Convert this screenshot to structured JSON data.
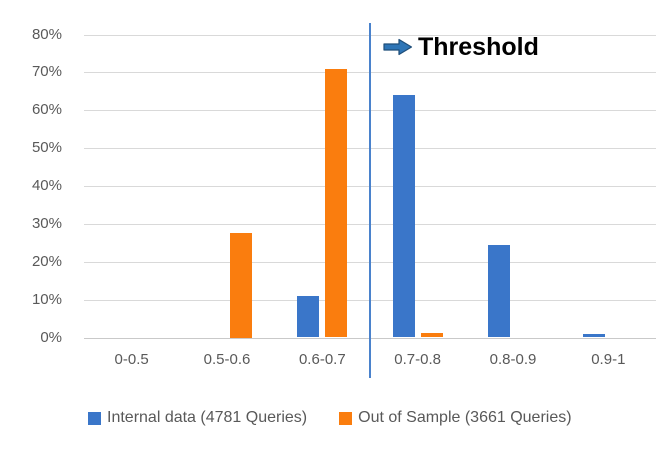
{
  "chart_data": {
    "type": "bar",
    "title": "",
    "xlabel": "",
    "ylabel": "",
    "categories": [
      "0-0.5",
      "0.5-0.6",
      "0.6-0.7",
      "0.7-0.8",
      "0.8-0.9",
      "0.9-1"
    ],
    "series": [
      {
        "key": "internal-data",
        "name": "Internal data (4781 Queries)",
        "color": "#3a76c9",
        "values": [
          0,
          0,
          11,
          64,
          24.5,
          0.8
        ]
      },
      {
        "key": "out-of-sample",
        "name": "Out of Sample (3661 Queries)",
        "color": "#fa7d0e",
        "values": [
          0,
          27.5,
          71,
          1.2,
          0,
          0
        ]
      }
    ],
    "y_ticks": [
      "80%",
      "70%",
      "60%",
      "50%",
      "40%",
      "30%",
      "20%",
      "10%",
      "0%"
    ],
    "ylim": [
      0,
      80
    ],
    "grid": true,
    "legend_position": "bottom",
    "annotation": {
      "label": "Threshold",
      "icon": "right-block-arrow",
      "threshold_line_between": [
        "0.6-0.7",
        "0.7-0.8"
      ]
    },
    "colors": {
      "gridline": "#d9d9d9",
      "axis_text": "#595959",
      "threshold_line": "#4a82cc",
      "arrow_fill": "#2e75b6",
      "arrow_stroke": "#1f4e79"
    }
  }
}
